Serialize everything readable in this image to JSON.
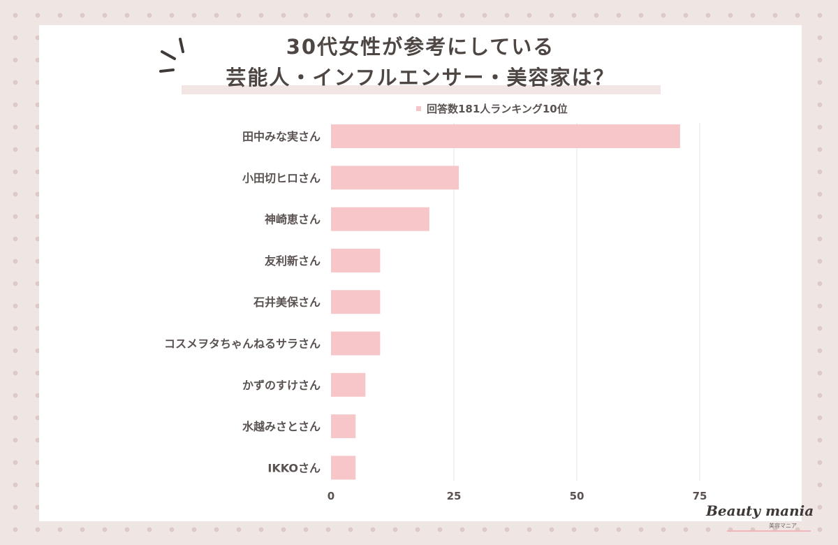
{
  "title": {
    "line1": "30代女性が参考にしている",
    "line2": "芸能人・インフルエンサー・美容家は？"
  },
  "brand": {
    "name": "Beauty mania",
    "sub": "美容マニア"
  },
  "chart_data": {
    "type": "bar",
    "orientation": "horizontal",
    "categories": [
      "田中みな実さん",
      "小田切ヒロさん",
      "神崎恵さん",
      "友利新さん",
      "石井美保さん",
      "コスメヲタちゃんねるサラさん",
      "かずのすけさん",
      "水越みさとさん",
      "IKKOさん"
    ],
    "series": [
      {
        "name": "回答数181人ランキング10位",
        "values": [
          71,
          26,
          20,
          10,
          10,
          10,
          7,
          5,
          5
        ],
        "color": "#f7c6c8"
      }
    ],
    "xlim": [
      0,
      75
    ],
    "xticks": [
      0,
      25,
      50,
      75
    ],
    "grid": true,
    "legend": "top-center"
  }
}
